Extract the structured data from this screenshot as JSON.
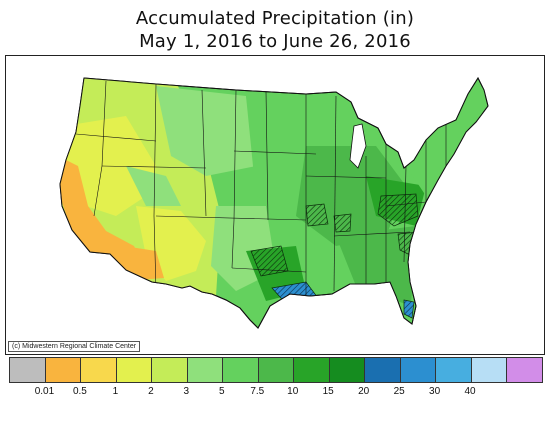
{
  "title_line1": "Accumulated Precipitation (in)",
  "title_line2": "May 1, 2016 to June 26, 2016",
  "credit": "(c) Midwestern Regional Climate Center",
  "legend": {
    "colors": [
      "#bdbdbd",
      "#f9b43e",
      "#f8d84c",
      "#e3f04e",
      "#c4ec58",
      "#8fe07c",
      "#64d15e",
      "#4cb84a",
      "#28a428",
      "#158c1f",
      "#1a6fb0",
      "#2c8fd0",
      "#47aee0",
      "#b7def5",
      "#d28de8"
    ],
    "labels": [
      "0.01",
      "0.5",
      "1",
      "2",
      "3",
      "5",
      "7.5",
      "10",
      "15",
      "20",
      "25",
      "30",
      "40"
    ]
  }
}
